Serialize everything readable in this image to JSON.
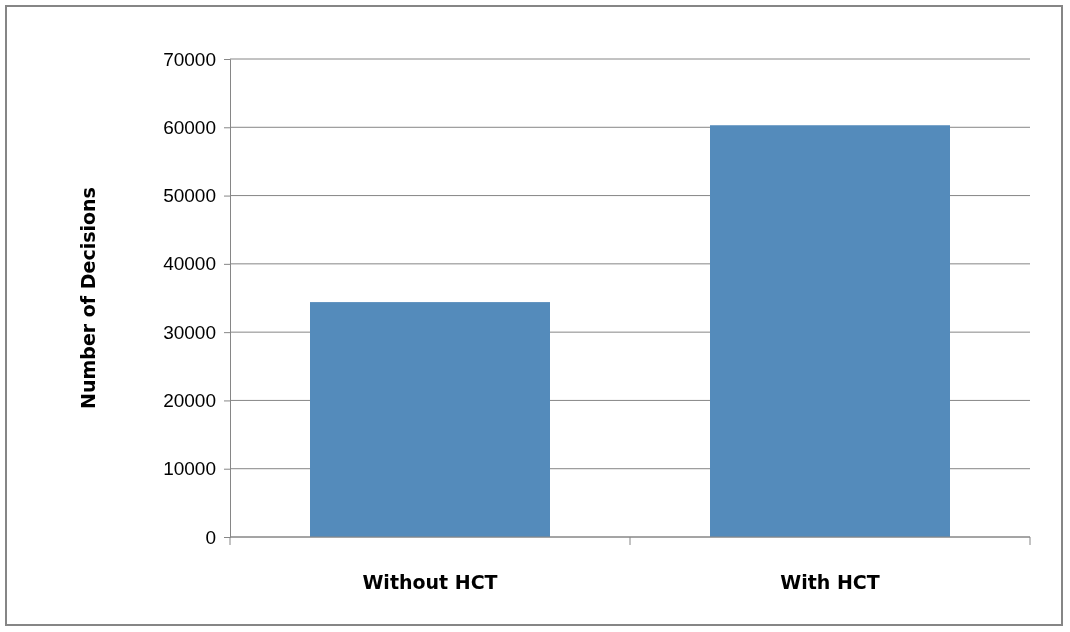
{
  "chart_data": {
    "type": "bar",
    "ylabel": "Number of Decisions",
    "categories": [
      "Without HCT",
      "With HCT"
    ],
    "values": [
      34400,
      60300
    ],
    "color": "#548bbb",
    "ylim": [
      0,
      70000
    ],
    "yticks": [
      0,
      10000,
      20000,
      30000,
      40000,
      50000,
      60000,
      70000
    ],
    "grid": "y"
  }
}
